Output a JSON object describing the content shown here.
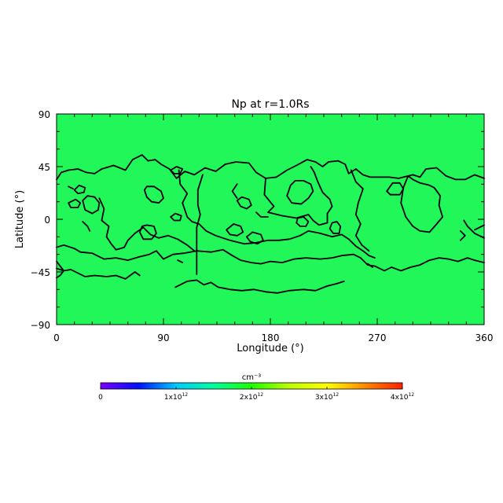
{
  "chart_data": {
    "type": "heatmap",
    "title": "Np at r=1.0Rs",
    "xlabel": "Longitude (°)",
    "ylabel": "Latitude (°)",
    "xlim": [
      0,
      360
    ],
    "ylim": [
      -90,
      90
    ],
    "xticks": [
      "0",
      "90",
      "180",
      "270",
      "360"
    ],
    "yticks": [
      "90",
      "45",
      "0",
      "−45",
      "−90"
    ],
    "field_value_cm3": 2000000000000.0,
    "field_color": "#22f75a",
    "contours": [
      [
        [
          0,
          34
        ],
        [
          4,
          40
        ],
        [
          10,
          42
        ],
        [
          18,
          43
        ],
        [
          25,
          40
        ],
        [
          32,
          39
        ],
        [
          38,
          43
        ],
        [
          48,
          46
        ],
        [
          58,
          42
        ],
        [
          64,
          51
        ],
        [
          72,
          55
        ],
        [
          77,
          50
        ],
        [
          83,
          51
        ],
        [
          88,
          47
        ],
        [
          95,
          43
        ],
        [
          101,
          35
        ],
        [
          108,
          41
        ],
        [
          116,
          38
        ],
        [
          125,
          44
        ],
        [
          134,
          41
        ],
        [
          142,
          47
        ],
        [
          151,
          49
        ],
        [
          162,
          48
        ],
        [
          168,
          40
        ],
        [
          176,
          35
        ],
        [
          185,
          36
        ],
        [
          194,
          42
        ],
        [
          202,
          46
        ],
        [
          211,
          51
        ],
        [
          218,
          49
        ],
        [
          224,
          45
        ],
        [
          229,
          49
        ],
        [
          237,
          50
        ],
        [
          243,
          47
        ],
        [
          246,
          39
        ],
        [
          252,
          43
        ],
        [
          258,
          38
        ],
        [
          264,
          36
        ],
        [
          272,
          36
        ],
        [
          280,
          36
        ],
        [
          288,
          35
        ],
        [
          296,
          37
        ],
        [
          300,
          38
        ],
        [
          306,
          36
        ],
        [
          311,
          43
        ],
        [
          320,
          44
        ],
        [
          328,
          37
        ],
        [
          336,
          34
        ],
        [
          344,
          34
        ],
        [
          352,
          38
        ],
        [
          360,
          35
        ]
      ],
      [
        [
          0,
          -24
        ],
        [
          6,
          -22
        ],
        [
          15,
          -25
        ],
        [
          20,
          -28
        ],
        [
          30,
          -29
        ],
        [
          40,
          -34
        ],
        [
          50,
          -33
        ],
        [
          60,
          -35
        ],
        [
          70,
          -32
        ],
        [
          78,
          -30
        ],
        [
          84,
          -27
        ],
        [
          90,
          -34
        ],
        [
          98,
          -30
        ],
        [
          107,
          -29
        ],
        [
          118,
          -27
        ],
        [
          130,
          -28
        ],
        [
          140,
          -26
        ],
        [
          148,
          -31
        ],
        [
          155,
          -35
        ],
        [
          164,
          -37
        ],
        [
          172,
          -38
        ],
        [
          180,
          -36
        ],
        [
          190,
          -37
        ],
        [
          200,
          -34
        ],
        [
          210,
          -33
        ],
        [
          222,
          -34
        ],
        [
          232,
          -33
        ],
        [
          240,
          -31
        ],
        [
          250,
          -30
        ],
        [
          256,
          -33
        ],
        [
          262,
          -39
        ],
        [
          268,
          -40
        ],
        [
          276,
          -44
        ],
        [
          282,
          -41
        ],
        [
          290,
          -44
        ],
        [
          298,
          -41
        ],
        [
          306,
          -39
        ],
        [
          314,
          -35
        ],
        [
          322,
          -33
        ],
        [
          330,
          -34
        ],
        [
          338,
          -36
        ],
        [
          346,
          -33
        ],
        [
          352,
          -35
        ],
        [
          360,
          -37
        ]
      ],
      [
        [
          0,
          -42
        ],
        [
          6,
          -44
        ],
        [
          12,
          -43
        ],
        [
          18,
          -46
        ],
        [
          24,
          -49
        ],
        [
          32,
          -48
        ],
        [
          42,
          -49
        ],
        [
          50,
          -48
        ],
        [
          58,
          -51
        ],
        [
          66,
          -45
        ],
        [
          70,
          -48
        ]
      ],
      [
        [
          100,
          -58
        ],
        [
          110,
          -53
        ],
        [
          118,
          -52
        ],
        [
          124,
          -56
        ],
        [
          130,
          -54
        ],
        [
          136,
          -58
        ],
        [
          146,
          -60
        ],
        [
          156,
          -61
        ],
        [
          166,
          -60
        ],
        [
          176,
          -62
        ],
        [
          186,
          -63
        ],
        [
          196,
          -61
        ],
        [
          208,
          -60
        ],
        [
          218,
          -61
        ],
        [
          228,
          -57
        ],
        [
          236,
          -55
        ],
        [
          242,
          -53
        ]
      ],
      [
        [
          36,
          18
        ],
        [
          40,
          9
        ],
        [
          38,
          -1
        ],
        [
          44,
          -6
        ],
        [
          42,
          -15
        ],
        [
          46,
          -21
        ],
        [
          50,
          -26
        ],
        [
          57,
          -24
        ],
        [
          60,
          -18
        ],
        [
          66,
          -12
        ],
        [
          73,
          -7
        ],
        [
          79,
          -13
        ],
        [
          86,
          -16
        ],
        [
          94,
          -14
        ],
        [
          102,
          -17
        ],
        [
          110,
          -22
        ],
        [
          116,
          -27
        ]
      ],
      [
        [
          103,
          42
        ],
        [
          104,
          30
        ],
        [
          110,
          22
        ],
        [
          106,
          14
        ],
        [
          110,
          2
        ],
        [
          114,
          -2
        ],
        [
          120,
          -4
        ],
        [
          126,
          -10
        ],
        [
          134,
          -14
        ],
        [
          146,
          -18
        ],
        [
          158,
          -21
        ],
        [
          168,
          -20
        ],
        [
          178,
          -18
        ],
        [
          187,
          -18
        ],
        [
          196,
          -17
        ],
        [
          205,
          -14
        ],
        [
          212,
          -10
        ],
        [
          222,
          -12
        ],
        [
          232,
          -15
        ],
        [
          240,
          -13
        ],
        [
          246,
          -17
        ],
        [
          252,
          -23
        ],
        [
          258,
          -27
        ],
        [
          263,
          -31
        ],
        [
          268,
          -33
        ]
      ],
      [
        [
          123,
          38
        ],
        [
          119,
          25
        ],
        [
          119,
          12
        ],
        [
          121,
          4
        ],
        [
          118,
          -7
        ],
        [
          118,
          -20
        ],
        [
          118,
          -32
        ],
        [
          118,
          -43
        ],
        [
          118,
          -47
        ]
      ],
      [
        [
          176,
          35
        ],
        [
          175,
          21
        ],
        [
          183,
          11
        ],
        [
          178,
          6
        ],
        [
          190,
          3
        ],
        [
          202,
          1
        ],
        [
          212,
          4
        ],
        [
          216,
          -1
        ],
        [
          221,
          -5
        ],
        [
          228,
          -3
        ],
        [
          228,
          5
        ],
        [
          232,
          11
        ],
        [
          230,
          17
        ],
        [
          224,
          23
        ],
        [
          220,
          32
        ],
        [
          217,
          40
        ],
        [
          214,
          45
        ]
      ],
      [
        [
          197,
          29
        ],
        [
          194,
          20
        ],
        [
          198,
          14
        ],
        [
          206,
          13
        ],
        [
          212,
          18
        ],
        [
          216,
          24
        ],
        [
          214,
          30
        ],
        [
          208,
          33
        ],
        [
          201,
          33
        ],
        [
          197,
          29
        ]
      ],
      [
        [
          248,
          42
        ],
        [
          252,
          32
        ],
        [
          258,
          26
        ],
        [
          254,
          14
        ],
        [
          252,
          4
        ],
        [
          256,
          -4
        ],
        [
          252,
          -14
        ],
        [
          257,
          -22
        ],
        [
          263,
          -27
        ]
      ],
      [
        [
          296,
          37
        ],
        [
          292,
          27
        ],
        [
          290,
          14
        ],
        [
          294,
          2
        ],
        [
          300,
          -6
        ],
        [
          306,
          -10
        ],
        [
          314,
          -11
        ],
        [
          320,
          -4
        ],
        [
          325,
          2
        ],
        [
          322,
          12
        ],
        [
          323,
          20
        ],
        [
          318,
          27
        ],
        [
          314,
          29
        ],
        [
          306,
          31
        ],
        [
          300,
          34
        ],
        [
          296,
          37
        ]
      ],
      [
        [
          343,
          -1
        ],
        [
          346,
          -6
        ],
        [
          352,
          -12
        ],
        [
          360,
          -16
        ]
      ],
      [
        [
          22,
          16
        ],
        [
          24,
          8
        ],
        [
          30,
          5
        ],
        [
          35,
          8
        ],
        [
          36,
          14
        ],
        [
          32,
          19
        ],
        [
          26,
          20
        ],
        [
          22,
          16
        ]
      ],
      [
        [
          10,
          14
        ],
        [
          12,
          10
        ],
        [
          18,
          10
        ],
        [
          20,
          14
        ],
        [
          16,
          17
        ],
        [
          10,
          14
        ]
      ],
      [
        [
          15,
          25
        ],
        [
          18,
          22
        ],
        [
          23,
          23
        ],
        [
          24,
          27
        ],
        [
          19,
          29
        ],
        [
          15,
          25
        ]
      ],
      [
        [
          74,
          25
        ],
        [
          76,
          19
        ],
        [
          80,
          15
        ],
        [
          86,
          14
        ],
        [
          90,
          18
        ],
        [
          88,
          24
        ],
        [
          82,
          28
        ],
        [
          76,
          28
        ],
        [
          74,
          25
        ]
      ],
      [
        [
          72,
          -6
        ],
        [
          70,
          -11
        ],
        [
          73,
          -17
        ],
        [
          80,
          -17
        ],
        [
          84,
          -12
        ],
        [
          82,
          -6
        ],
        [
          76,
          -5
        ],
        [
          72,
          -6
        ]
      ],
      [
        [
          143,
          -9
        ],
        [
          146,
          -13
        ],
        [
          152,
          -14
        ],
        [
          157,
          -11
        ],
        [
          155,
          -6
        ],
        [
          149,
          -4
        ],
        [
          143,
          -9
        ]
      ],
      [
        [
          160,
          -15
        ],
        [
          163,
          -19
        ],
        [
          169,
          -21
        ],
        [
          174,
          -18
        ],
        [
          172,
          -13
        ],
        [
          165,
          -11
        ],
        [
          160,
          -15
        ]
      ],
      [
        [
          202,
          -3
        ],
        [
          205,
          -6
        ],
        [
          210,
          -6
        ],
        [
          212,
          -2
        ],
        [
          208,
          2
        ],
        [
          203,
          1
        ],
        [
          202,
          -3
        ]
      ],
      [
        [
          230,
          -8
        ],
        [
          233,
          -12
        ],
        [
          238,
          -12
        ],
        [
          239,
          -6
        ],
        [
          236,
          -2
        ],
        [
          232,
          -3
        ],
        [
          230,
          -8
        ]
      ],
      [
        [
          278,
          24
        ],
        [
          281,
          21
        ],
        [
          289,
          21
        ],
        [
          292,
          26
        ],
        [
          289,
          31
        ],
        [
          283,
          31
        ],
        [
          278,
          24
        ]
      ],
      [
        [
          96,
          2
        ],
        [
          99,
          -1
        ],
        [
          104,
          -1
        ],
        [
          105,
          3
        ],
        [
          100,
          5
        ],
        [
          96,
          2
        ]
      ],
      [
        [
          102,
          -35
        ],
        [
          106,
          -37
        ]
      ],
      [
        [
          96,
          42
        ],
        [
          99,
          39
        ],
        [
          104,
          39
        ],
        [
          106,
          43
        ],
        [
          101,
          45
        ],
        [
          96,
          42
        ]
      ],
      [
        [
          152,
          16
        ],
        [
          155,
          11
        ],
        [
          160,
          9
        ],
        [
          164,
          12
        ],
        [
          162,
          17
        ],
        [
          156,
          19
        ],
        [
          152,
          16
        ]
      ],
      [
        [
          152,
          30
        ],
        [
          148,
          24
        ],
        [
          152,
          18
        ]
      ],
      [
        [
          168,
          6
        ],
        [
          172,
          2
        ],
        [
          178,
          2
        ]
      ],
      [
        [
          0,
          -36
        ],
        [
          3,
          -40
        ],
        [
          6,
          -44
        ],
        [
          3,
          -48
        ],
        [
          0,
          -50
        ]
      ],
      [
        [
          22,
          -2
        ],
        [
          26,
          -6
        ],
        [
          28,
          -10
        ]
      ],
      [
        [
          262,
          -38
        ],
        [
          266,
          -41
        ]
      ],
      [
        [
          352,
          -9
        ],
        [
          360,
          -5
        ]
      ],
      [
        [
          340,
          -10
        ],
        [
          344,
          -14
        ],
        [
          340,
          -18
        ]
      ],
      [
        [
          10,
          28
        ],
        [
          14,
          26
        ]
      ]
    ]
  },
  "colorbar": {
    "unit": "cm⁻³",
    "ticks": [
      {
        "mantissa": "0",
        "exp": ""
      },
      {
        "mantissa": "1x10",
        "exp": "12"
      },
      {
        "mantissa": "2x10",
        "exp": "12"
      },
      {
        "mantissa": "3x10",
        "exp": "12"
      },
      {
        "mantissa": "4x10",
        "exp": "12"
      }
    ],
    "range": [
      0,
      4000000000000.0
    ],
    "colors": [
      "#7d00ff",
      "#0010ff",
      "#00c8ff",
      "#00ff9e",
      "#1bff00",
      "#bfff00",
      "#ffff00",
      "#ff8a00",
      "#ff2000"
    ]
  }
}
